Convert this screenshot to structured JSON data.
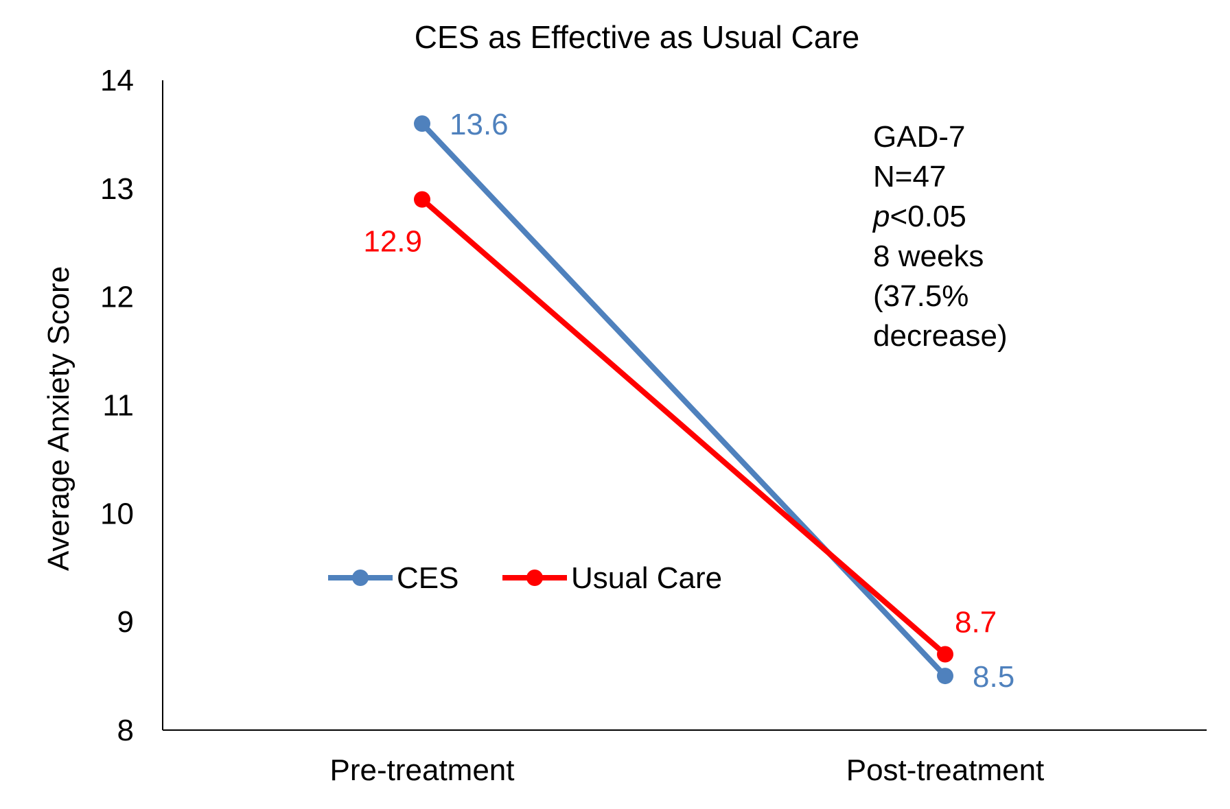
{
  "chart_data": {
    "type": "line",
    "title": "CES as Effective as Usual Care",
    "xlabel": "",
    "ylabel": "Average Anxiety Score",
    "categories": [
      "Pre-treatment",
      "Post-treatment"
    ],
    "ylim": [
      8,
      14
    ],
    "yticks": [
      "8",
      "9",
      "10",
      "11",
      "12",
      "13",
      "14"
    ],
    "grid": false,
    "legend_position": "center-left",
    "series": [
      {
        "name": "CES",
        "values": [
          13.6,
          8.5
        ],
        "labels": [
          "13.6",
          "8.5"
        ],
        "color": "#4F81BD"
      },
      {
        "name": "Usual Care",
        "values": [
          12.9,
          8.7
        ],
        "labels": [
          "12.9",
          "8.7"
        ],
        "color": "#FF0000"
      }
    ],
    "annotation": {
      "lines": [
        {
          "text": "GAD-7"
        },
        {
          "text": "N=47"
        },
        {
          "italic": "p",
          "text": "<0.05"
        },
        {
          "text": "8 weeks"
        },
        {
          "text": "(37.5%"
        },
        {
          "text": "decrease)"
        }
      ]
    }
  }
}
